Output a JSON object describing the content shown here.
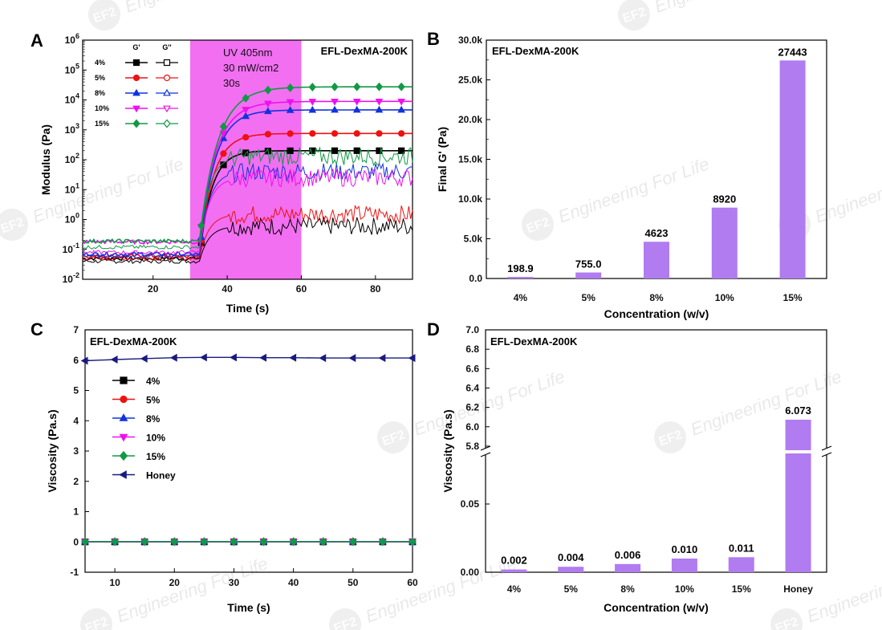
{
  "watermark": {
    "logo": "EF2",
    "text": "Engineering For Life"
  },
  "panelA": {
    "letter": "A",
    "chart_data": {
      "type": "line",
      "title": "EFL-DexMA-200K",
      "xlabel": "Time (s)",
      "ylabel": "Modulus (Pa)",
      "xlim": [
        1,
        90
      ],
      "ylim": [
        0.01,
        1000000
      ],
      "yscale": "log",
      "xticks": [
        "20",
        "40",
        "60",
        "80"
      ],
      "yticks": [
        "10-2",
        "10-1",
        "100",
        "101",
        "102",
        "103",
        "104",
        "105",
        "106"
      ],
      "legend_headers": [
        "G'",
        "G''"
      ],
      "uv_window": [
        30,
        60
      ],
      "uv_label_lines": [
        "UV 405nm",
        "30 mW/cm2",
        "30s"
      ],
      "series": [
        {
          "name": "4%",
          "color": "#000000",
          "gp_base": 0.05,
          "gp_final": 200,
          "gpp_base": 0.04,
          "gpp_final": 0.6
        },
        {
          "name": "5%",
          "color": "#ee1111",
          "gp_base": 0.06,
          "gp_final": 755,
          "gpp_base": 0.05,
          "gpp_final": 1.5
        },
        {
          "name": "8%",
          "color": "#1133dd",
          "gp_base": 0.07,
          "gp_final": 4623,
          "gpp_base": 0.06,
          "gpp_final": 40
        },
        {
          "name": "10%",
          "color": "#ee11ee",
          "gp_base": 0.18,
          "gp_final": 8920,
          "gpp_base": 0.08,
          "gpp_final": 25
        },
        {
          "name": "15%",
          "color": "#119944",
          "gp_base": 0.19,
          "gp_final": 27443,
          "gpp_base": 0.12,
          "gpp_final": 130
        }
      ]
    }
  },
  "panelB": {
    "letter": "B",
    "chart_data": {
      "type": "bar",
      "title": "EFL-DexMA-200K",
      "xlabel": "Concentration (w/v)",
      "ylabel": "Final G' (Pa)",
      "ylim": [
        0,
        30000
      ],
      "yticks": [
        "0.0",
        "5.0k",
        "10.0k",
        "15.0k",
        "20.0k",
        "25.0k",
        "30.0k"
      ],
      "categories": [
        "4%",
        "5%",
        "8%",
        "10%",
        "15%"
      ],
      "values": [
        198.9,
        755.0,
        4623,
        8920,
        27443
      ],
      "value_labels": [
        "198.9",
        "755.0",
        "4623",
        "8920",
        "27443"
      ],
      "bar_color": "#b07cf0"
    }
  },
  "panelC": {
    "letter": "C",
    "chart_data": {
      "type": "line",
      "title": "EFL-DexMA-200K",
      "xlabel": "Time (s)",
      "ylabel": "Viscosity (Pa.s)",
      "xlim": [
        5,
        60
      ],
      "ylim": [
        -1,
        7
      ],
      "xticks": [
        "10",
        "20",
        "30",
        "40",
        "50",
        "60"
      ],
      "yticks": [
        "-1",
        "0",
        "1",
        "2",
        "3",
        "4",
        "5",
        "6",
        "7"
      ],
      "series": [
        {
          "name": "4%",
          "color": "#000000",
          "marker": "square",
          "value": 0.002
        },
        {
          "name": "5%",
          "color": "#ee1111",
          "marker": "circle",
          "value": 0.004
        },
        {
          "name": "8%",
          "color": "#1133dd",
          "marker": "triangle-up",
          "value": 0.006
        },
        {
          "name": "10%",
          "color": "#ee11ee",
          "marker": "triangle-down",
          "value": 0.01
        },
        {
          "name": "15%",
          "color": "#119944",
          "marker": "diamond",
          "value": 0.011
        },
        {
          "name": "Honey",
          "color": "#1a1a80",
          "marker": "triangle-left",
          "values": [
            5.98,
            6.02,
            6.05,
            6.08,
            6.09,
            6.09,
            6.08,
            6.08,
            6.07,
            6.07,
            6.07,
            6.07
          ]
        }
      ],
      "x": [
        5,
        10,
        15,
        20,
        25,
        30,
        35,
        40,
        45,
        50,
        55,
        60
      ]
    }
  },
  "panelD": {
    "letter": "D",
    "chart_data": {
      "type": "bar",
      "title": "EFL-DexMA-200K",
      "xlabel": "Concentration (w/v)",
      "ylabel": "Viscosity (Pa.s)",
      "broken_axis": true,
      "lower_ylim": [
        0,
        0.09
      ],
      "upper_ylim": [
        5.7,
        7.0
      ],
      "lower_yticks": [
        "0.00",
        "0.05"
      ],
      "upper_yticks": [
        "5.8",
        "6.0",
        "6.2",
        "6.4",
        "6.6",
        "6.8",
        "7.0"
      ],
      "categories": [
        "4%",
        "5%",
        "8%",
        "10%",
        "15%",
        "Honey"
      ],
      "values": [
        0.002,
        0.004,
        0.006,
        0.01,
        0.011,
        6.073
      ],
      "value_labels": [
        "0.002",
        "0.004",
        "0.006",
        "0.010",
        "0.011",
        "6.073"
      ],
      "bar_color": "#b07cf0"
    }
  }
}
